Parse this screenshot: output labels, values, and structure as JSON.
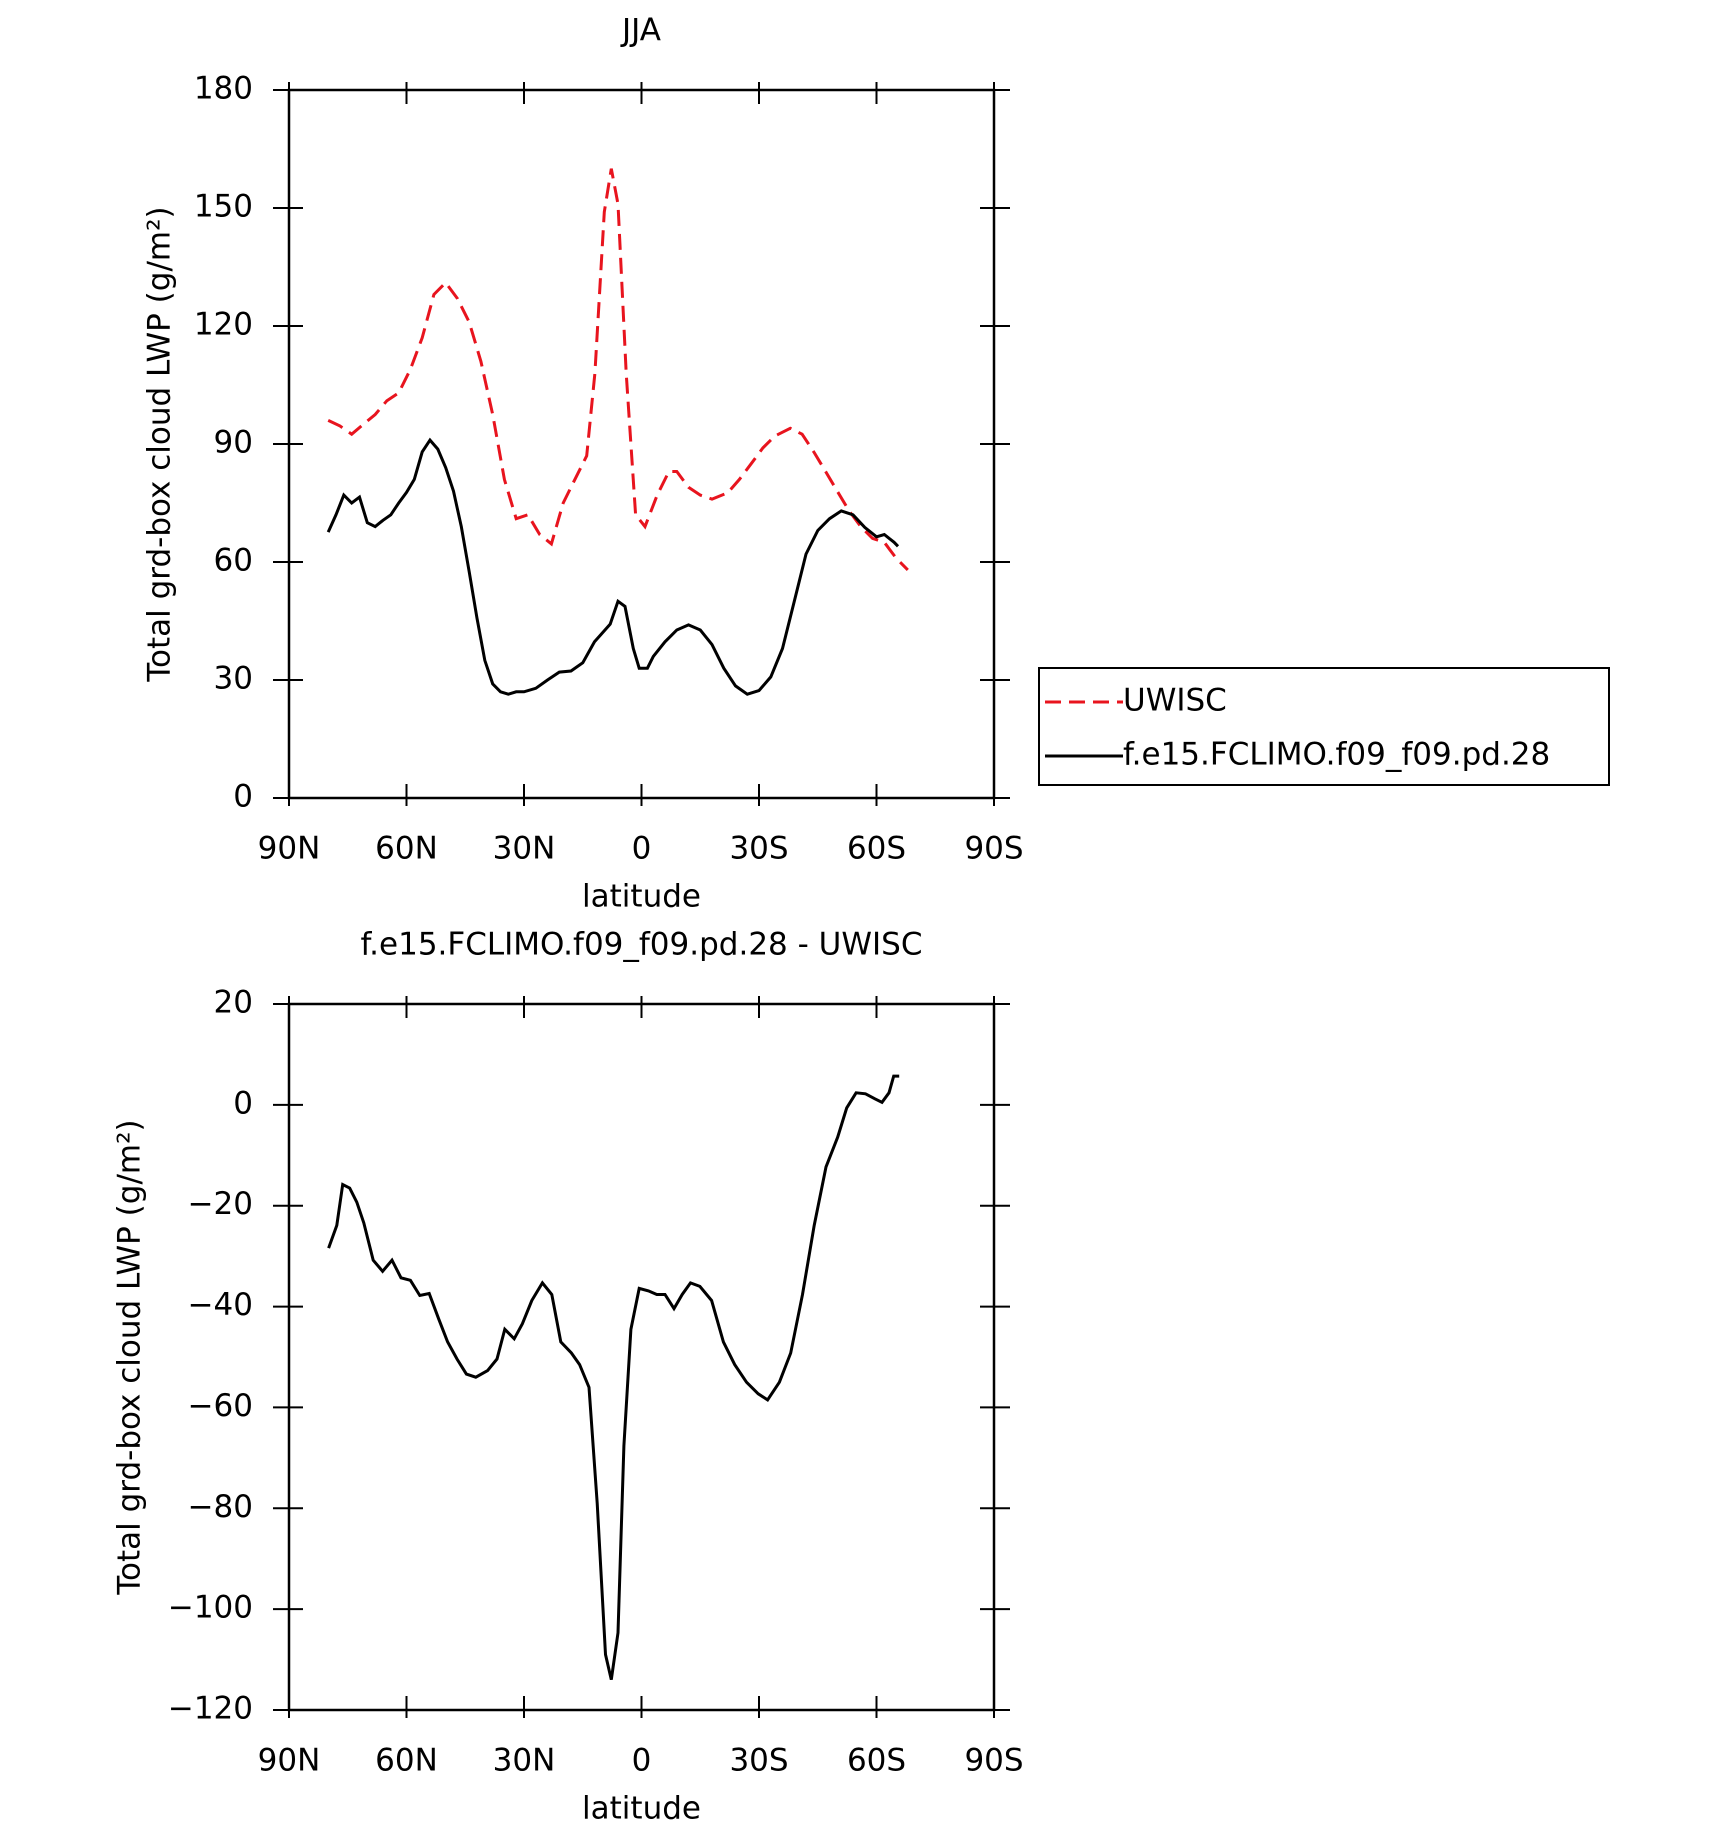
{
  "chart_data": [
    {
      "type": "line",
      "title": "JJA",
      "x_label": "latitude",
      "y_label": "Total grd-box cloud LWP (g/m²)",
      "xlim": [
        90,
        -90
      ],
      "xticks": [
        {
          "value": 90,
          "label": "90N"
        },
        {
          "value": 60,
          "label": "60N"
        },
        {
          "value": 30,
          "label": "30N"
        },
        0,
        {
          "value": -30,
          "label": "30S"
        },
        {
          "value": -60,
          "label": "60S"
        },
        {
          "value": -90,
          "label": "90S"
        }
      ],
      "ylim": [
        0,
        180
      ],
      "yticks": [
        0,
        30,
        60,
        90,
        120,
        150,
        180
      ],
      "legend": "right",
      "series": [
        {
          "name": "UWISC",
          "color": "#e8141e",
          "dash": true,
          "x": [
            80,
            77,
            74,
            71,
            68,
            65,
            62,
            59,
            56,
            53,
            50,
            47,
            44,
            41,
            38,
            35,
            32,
            29,
            26,
            23,
            20,
            17,
            14,
            11.9,
            9.5,
            7.7,
            6,
            3.9,
            1.5,
            -0.9,
            -4,
            -7,
            -9,
            -12,
            -15,
            -18,
            -22,
            -25,
            -28,
            -31,
            -34,
            -38,
            -41,
            -44,
            -47,
            -50,
            -53,
            -56,
            -59,
            -62,
            -65,
            -68
          ],
          "values": [
            96,
            94.6,
            92.5,
            95,
            97.5,
            101,
            103,
            109,
            117,
            128,
            131,
            127,
            121,
            111,
            97.5,
            81,
            71,
            72,
            67,
            64.6,
            75,
            81,
            87,
            108,
            149,
            160,
            151,
            108,
            72,
            69,
            77,
            83,
            83,
            79,
            77,
            76,
            77.6,
            81,
            85,
            89,
            92,
            94,
            92.5,
            88,
            83,
            78,
            73,
            69,
            66,
            65,
            61,
            58
          ]
        },
        {
          "name": "f.e15.FCLIMO.f09_f09.pd.28",
          "color": "#000000",
          "dash": false,
          "x": [
            80,
            78,
            76,
            74,
            72,
            70,
            68,
            66,
            64,
            62,
            60,
            58,
            56,
            54,
            52,
            50,
            48,
            46,
            44,
            42,
            40,
            38,
            36,
            34,
            32,
            30,
            27,
            24,
            21,
            18,
            15,
            12,
            8,
            6,
            4.2,
            2.1,
            0.6,
            -1.5,
            -3,
            -6,
            -9,
            -12,
            -15,
            -18,
            -21,
            -24,
            -27,
            -30,
            -33,
            -36,
            -39,
            -42,
            -45,
            -48,
            -51,
            -54,
            -57,
            -60,
            -62,
            -64.5,
            -65.5
          ],
          "values": [
            67.6,
            72,
            77,
            75,
            76.5,
            70,
            69,
            70.6,
            72,
            75,
            77.7,
            81,
            88,
            91,
            88.7,
            84,
            78,
            69,
            57.5,
            45.7,
            35,
            29,
            27,
            26.4,
            27,
            27,
            27.9,
            30,
            32,
            32.3,
            34.4,
            39.7,
            44.2,
            50,
            48.7,
            38,
            33,
            33,
            36,
            39.7,
            42.7,
            44,
            42.7,
            39,
            33,
            28.5,
            26.4,
            27.3,
            30.8,
            38,
            50,
            62,
            68,
            71,
            73,
            72,
            68.8,
            66.4,
            67,
            65,
            64
          ]
        }
      ]
    },
    {
      "type": "line",
      "title": "f.e15.FCLIMO.f09_f09.pd.28 - UWISC",
      "x_label": "latitude",
      "y_label": "Total grd-box cloud LWP (g/m²)",
      "xlim": [
        90,
        -90
      ],
      "xticks": [
        {
          "value": 90,
          "label": "90N"
        },
        {
          "value": 60,
          "label": "60N"
        },
        {
          "value": 30,
          "label": "30N"
        },
        0,
        {
          "value": -30,
          "label": "30S"
        },
        {
          "value": -60,
          "label": "60S"
        },
        {
          "value": -90,
          "label": "90S"
        }
      ],
      "ylim": [
        -120,
        20
      ],
      "yticks": [
        {
          "value": -120,
          "label": "−120"
        },
        {
          "value": -100,
          "label": "−100"
        },
        {
          "value": -80,
          "label": "−80"
        },
        {
          "value": -60,
          "label": "−60"
        },
        {
          "value": -40,
          "label": "−40"
        },
        {
          "value": -20,
          "label": "−20"
        },
        0,
        20
      ],
      "series": [
        {
          "color": "#000000",
          "dash": false,
          "x": [
            79.9,
            77.8,
            76.3,
            74.5,
            72.7,
            70.9,
            68.5,
            66.1,
            63.7,
            61.4,
            59,
            56.6,
            54.2,
            51.8,
            49.5,
            47.1,
            44.7,
            42.3,
            39.3,
            36.9,
            34.9,
            32.5,
            30.4,
            28,
            25.3,
            22.9,
            20.6,
            17.9,
            15.8,
            13.4,
            11.3,
            9.2,
            7.7,
            6,
            4.5,
            2.7,
            0.6,
            -1.8,
            -3.9,
            -6,
            -8.3,
            -10.4,
            -12.5,
            -14.9,
            -17.9,
            -20.9,
            -23.8,
            -26.8,
            -29.8,
            -32.2,
            -35.2,
            -38.1,
            -41.1,
            -44.1,
            -47.1,
            -50.1,
            -52.4,
            -54.8,
            -57.2,
            -59.6,
            -61.4,
            -63.2,
            -64.4,
            -65.8
          ],
          "values": [
            -28.4,
            -23.9,
            -15.8,
            -16.5,
            -19.3,
            -23.4,
            -30.8,
            -33,
            -30.8,
            -34.3,
            -34.8,
            -37.8,
            -37.4,
            -42.4,
            -47,
            -50.4,
            -53.4,
            -54,
            -52.7,
            -50.4,
            -44.5,
            -46.4,
            -43.4,
            -38.8,
            -35.3,
            -37.6,
            -47,
            -49.2,
            -51.5,
            -56,
            -79,
            -109,
            -114,
            -104.7,
            -67.6,
            -44.5,
            -36.4,
            -36.9,
            -37.6,
            -37.6,
            -40.4,
            -37.6,
            -35.3,
            -36,
            -38.8,
            -47,
            -51.5,
            -55,
            -57.3,
            -58.5,
            -55,
            -49.2,
            -37.6,
            -23.9,
            -12.3,
            -6.4,
            -0.6,
            2.4,
            2.2,
            1.2,
            0.5,
            2.4,
            5.7,
            5.7
          ]
        }
      ]
    }
  ]
}
